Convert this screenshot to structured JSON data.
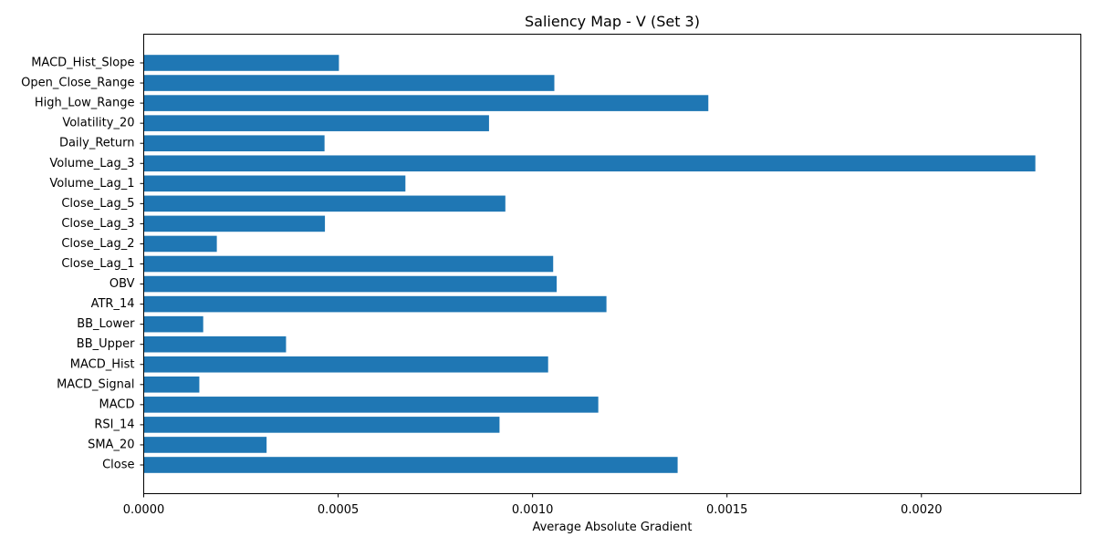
{
  "chart_data": {
    "type": "bar",
    "orientation": "horizontal",
    "title": "Saliency Map - V (Set 3)",
    "xlabel": "Average Absolute Gradient",
    "ylabel": "",
    "xlim": [
      0,
      0.00241
    ],
    "xticks": [
      {
        "value": 0,
        "label": "0.0000"
      },
      {
        "value": 0.0005,
        "label": "0.0005"
      },
      {
        "value": 0.001,
        "label": "0.0010"
      },
      {
        "value": 0.0015,
        "label": "0.0015"
      },
      {
        "value": 0.002,
        "label": "0.0020"
      }
    ],
    "categories": [
      "Close",
      "SMA_20",
      "RSI_14",
      "MACD",
      "MACD_Signal",
      "MACD_Hist",
      "BB_Upper",
      "BB_Lower",
      "ATR_14",
      "OBV",
      "Close_Lag_1",
      "Close_Lag_2",
      "Close_Lag_3",
      "Close_Lag_5",
      "Volume_Lag_1",
      "Volume_Lag_3",
      "Daily_Return",
      "Volatility_20",
      "High_Low_Range",
      "Open_Close_Range",
      "MACD_Hist_Slope"
    ],
    "values": [
      0.001373,
      0.000316,
      0.000915,
      0.001169,
      0.000143,
      0.00104,
      0.000366,
      0.000153,
      0.00119,
      0.001062,
      0.001053,
      0.000188,
      0.000466,
      0.00093,
      0.000673,
      0.002293,
      0.000465,
      0.000888,
      0.001452,
      0.001056,
      0.000502
    ],
    "bar_color": "#1f77b4",
    "grid": false,
    "legend": "none"
  }
}
